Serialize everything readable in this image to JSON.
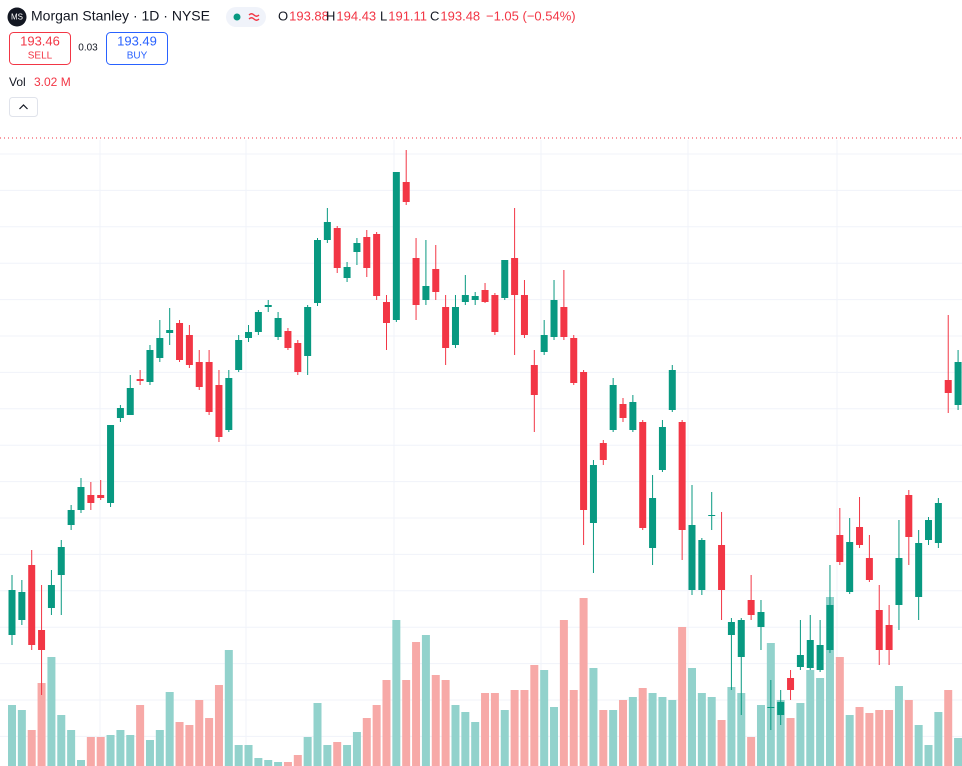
{
  "chart_data": {
    "type": "candlestick",
    "logo": "MS",
    "title": "Morgan Stanley · 1D · NYSE",
    "legend": [
      {
        "label": "O",
        "value": 193.88
      },
      {
        "label": "H",
        "value": 194.43
      },
      {
        "label": "L",
        "value": 191.11
      },
      {
        "label": "C",
        "value": 193.48
      }
    ],
    "change": "−1.05 (−0.54%)",
    "sell": {
      "price": 193.46,
      "label": "SELL"
    },
    "spread": 0.03,
    "buy": {
      "price": 193.49,
      "label": "BUY"
    },
    "volume_label": "Vol",
    "volume_value": "3.02 M",
    "ylim": [
      170,
      210
    ],
    "volume_ylim": [
      0,
      38.3
    ],
    "up_color": "#089981",
    "down_color": "#f23645",
    "volume_up_color": "#92d2cc",
    "volume_down_color": "#f7a9a7",
    "open": [
      178.25,
      179,
      181.75,
      178.5,
      179.6,
      181.25,
      183.75,
      184.5,
      185.25,
      185.25,
      184.85,
      189.1,
      189.25,
      191.05,
      190.9,
      192.1,
      193.35,
      193.85,
      193.25,
      191.9,
      191.9,
      190.75,
      188.5,
      191.5,
      193.1,
      193.4,
      194.65,
      193.15,
      193.45,
      192.85,
      192.2,
      194.85,
      198,
      198.6,
      196.1,
      197.4,
      198.15,
      198.3,
      194.9,
      194,
      200.9,
      197.1,
      195,
      196.55,
      194.65,
      192.75,
      194.9,
      195,
      195.5,
      195.25,
      195.1,
      197.1,
      195.25,
      191.75,
      192.4,
      193.15,
      194.65,
      193.1,
      191.4,
      183.85,
      187.85,
      188.5,
      189.8,
      188.5,
      188.9,
      182.6,
      186.5,
      189.5,
      188.9,
      180.5,
      180.5,
      184.25,
      182.75,
      178.25,
      177.15,
      180,
      178.65,
      174.6,
      174.25,
      176.1,
      176.65,
      176.6,
      176.5,
      177.5,
      183.25,
      180.4,
      183.65,
      182.1,
      179.5,
      178.75,
      179.75,
      185.25,
      180.15,
      183,
      182.85,
      191,
      189.75
    ],
    "high": [
      181.25,
      181,
      182.5,
      180.75,
      181.5,
      183,
      184.75,
      186.1,
      185.9,
      186,
      188.75,
      189.75,
      191.25,
      191.5,
      192.75,
      194,
      194.6,
      194,
      193.75,
      192.5,
      192.5,
      191.5,
      191.5,
      193.25,
      193.75,
      194.5,
      195,
      194.4,
      193.6,
      193,
      194.75,
      198.1,
      199.6,
      198.7,
      196.9,
      198.1,
      198.5,
      198.4,
      195.25,
      201.4,
      202.5,
      198.1,
      198,
      197.75,
      195.25,
      195.25,
      196.25,
      195.4,
      195.85,
      195.35,
      197,
      199.6,
      196,
      192.5,
      194,
      196,
      196.5,
      193.25,
      191.5,
      187,
      188,
      191.1,
      190.1,
      190.25,
      189,
      186.25,
      189,
      191.75,
      189,
      185.75,
      183.1,
      185.4,
      184.4,
      179.1,
      179.1,
      181.25,
      180,
      176,
      175.5,
      176.5,
      179,
      179.25,
      179,
      181.75,
      184.6,
      184.1,
      185.15,
      183.25,
      180.75,
      179.75,
      184,
      185.5,
      183.5,
      184.15,
      185.1,
      194.25,
      192.5
    ],
    "low": [
      177.75,
      178.75,
      177.5,
      175.25,
      179.25,
      179.25,
      183.5,
      184.35,
      184.5,
      185,
      184.65,
      188.9,
      189.25,
      190.75,
      190.75,
      191.9,
      192.75,
      191.9,
      191.6,
      190.5,
      189.25,
      187.9,
      188.4,
      191.4,
      192.9,
      193.25,
      194.4,
      193,
      192.5,
      191.25,
      191.25,
      194.7,
      197.85,
      196.35,
      195.9,
      196.75,
      196.15,
      195,
      192.5,
      193.9,
      199.75,
      194,
      194.75,
      195,
      191.75,
      192.6,
      194.75,
      194.75,
      194.85,
      193.25,
      195,
      192.25,
      193.1,
      188.4,
      192.25,
      193,
      193,
      190.75,
      182.75,
      181.35,
      186.75,
      188.4,
      188.9,
      188.4,
      183.5,
      181.75,
      186.4,
      189.4,
      182,
      180.25,
      180.25,
      183.5,
      179,
      175.5,
      174.25,
      179,
      177.5,
      173.5,
      173.75,
      175,
      176.5,
      176.5,
      176.4,
      177.35,
      181.75,
      180.3,
      182.6,
      180.9,
      176.75,
      176.75,
      178.5,
      181.75,
      179,
      182.75,
      182.6,
      189.35,
      189.5
    ],
    "close": [
      180.5,
      180.4,
      177.75,
      177.5,
      180.75,
      182.65,
      184.5,
      185.65,
      184.85,
      185.1,
      188.75,
      189.6,
      190.6,
      190.95,
      192.5,
      193.1,
      193.5,
      192,
      191.75,
      190.65,
      189.4,
      188.15,
      191.1,
      193,
      193.4,
      194.4,
      194.75,
      194.1,
      192.6,
      191.4,
      194.65,
      198,
      198.9,
      196.6,
      196.65,
      197.85,
      196.6,
      195.2,
      193.85,
      201.4,
      199.9,
      194.75,
      195.7,
      195.4,
      192.6,
      194.65,
      195.25,
      195.2,
      194.9,
      193.4,
      197,
      195.25,
      193.25,
      190.25,
      193.25,
      195,
      193.15,
      190.85,
      184.5,
      186.75,
      187,
      190.75,
      189.1,
      189.9,
      183.6,
      185.1,
      188.65,
      191.5,
      183.5,
      183.75,
      183,
      184.25,
      180.5,
      178.9,
      179,
      179.25,
      179.4,
      174.65,
      174.9,
      175.5,
      177.25,
      178,
      177.75,
      179.75,
      181.9,
      182.9,
      182.75,
      181,
      177.5,
      177.5,
      182.1,
      183.15,
      182.85,
      184,
      184.85,
      190.35,
      191.9
    ],
    "volume": [
      3.05,
      2.8,
      1.8,
      4.15,
      5.45,
      2.55,
      1.8,
      0.3,
      1.45,
      1.45,
      1.55,
      1.8,
      1.55,
      3.05,
      1.3,
      1.8,
      3.7,
      2.2,
      2.05,
      3.3,
      2.4,
      4.05,
      5.8,
      1.05,
      1.05,
      0.4,
      0.3,
      0.2,
      0.2,
      0.55,
      1.45,
      3.15,
      1.05,
      1.2,
      1.05,
      1.7,
      2.4,
      3.05,
      4.3,
      7.3,
      4.3,
      6.2,
      6.55,
      4.55,
      4.3,
      3.05,
      2.7,
      2.2,
      3.65,
      3.65,
      2.8,
      3.8,
      3.8,
      5.05,
      4.8,
      2.95,
      7.3,
      3.8,
      8.4,
      4.9,
      2.8,
      2.8,
      3.3,
      3.45,
      3.9,
      3.65,
      3.45,
      3.3,
      6.95,
      4.9,
      3.65,
      3.45,
      2.3,
      3.95,
      3.65,
      1.45,
      3.05,
      6.15,
      3.3,
      2.4,
      3.15,
      4.8,
      4.4,
      8.45,
      5.45,
      2.55,
      2.95,
      2.65,
      2.8,
      2.8,
      4.0,
      3.3,
      2.05,
      1.05,
      2.7,
      3.8,
      1.4
    ]
  }
}
